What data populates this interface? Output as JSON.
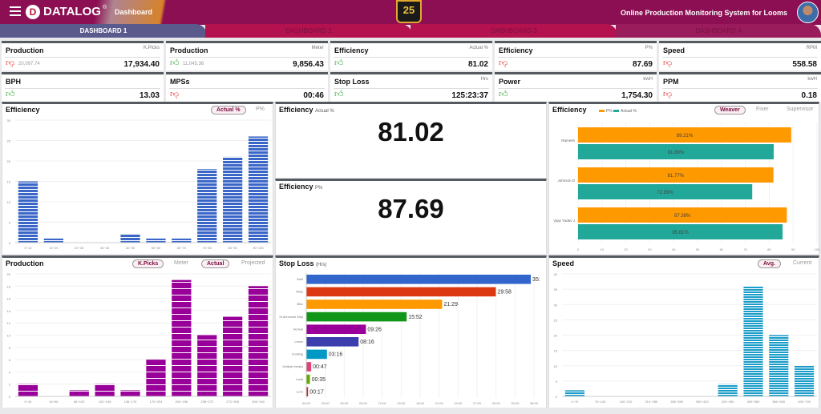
{
  "header": {
    "brand": "DATALOG",
    "brand_mark": "D",
    "registered": "®",
    "page": "Dashboard",
    "badge": "25",
    "system_title": "Online Production Monitoring System for Looms"
  },
  "tabs": [
    {
      "label": "DASHBOARD 1",
      "active": true
    },
    {
      "label": "DASHBOARD 2"
    },
    {
      "label": "DASHBOARD 3"
    },
    {
      "label": "DASHBOARD 4"
    }
  ],
  "kpis": [
    {
      "title": "Production",
      "unit": "K.Picks",
      "prev": "20,097.74",
      "value": "17,934.40",
      "trend": "down"
    },
    {
      "title": "Production",
      "unit": "Meter",
      "prev": "11,045.36",
      "value": "9,856.43",
      "trend": "up"
    },
    {
      "title": "Efficiency",
      "unit": "Actual %",
      "prev": "",
      "value": "81.02",
      "trend": "up"
    },
    {
      "title": "Efficiency",
      "unit": "P%",
      "prev": "",
      "value": "87.69",
      "trend": "down"
    },
    {
      "title": "Speed",
      "unit": "RPM",
      "prev": "",
      "value": "558.58",
      "trend": "down"
    },
    {
      "title": "BPH",
      "unit": "",
      "prev": "",
      "value": "13.03",
      "trend": "up"
    },
    {
      "title": "MPSs",
      "unit": "",
      "prev": "",
      "value": "00:46",
      "trend": "down"
    },
    {
      "title": "Stop Loss",
      "unit": "Hrs",
      "prev": "",
      "value": "125:23:37",
      "trend": "up"
    },
    {
      "title": "Power",
      "unit": "kwH",
      "prev": "",
      "value": "1,754.30",
      "trend": "up"
    },
    {
      "title": "PPM",
      "unit": "kwH",
      "prev": "",
      "value": "0.18",
      "trend": "down"
    }
  ],
  "colors": {
    "header": "#8b0f52",
    "eff_bar": "#3a66c8",
    "prod_bar": "#990099",
    "speed_bar": "#1a9cc8",
    "p_pct": "#ff9900",
    "actual_pct": "#22a898",
    "trend_up": "#3aa83a",
    "trend_down": "#e03030"
  },
  "icons": {
    "up": "thumbs-up-icon",
    "down": "thumbs-down-icon",
    "menu": "hamburger-menu-icon"
  },
  "eff_hist": {
    "title": "Efficiency",
    "toggle_active": "Actual %",
    "toggle_other": "P%"
  },
  "eff_actual": {
    "title": "Efficiency",
    "unit": "Actual %",
    "value": "81.02"
  },
  "eff_p": {
    "title": "Efficiency",
    "unit": "P%",
    "value": "87.69"
  },
  "eff_weaver": {
    "title": "Efficiency",
    "toggle_active": "Weaver",
    "opt1": "Fixer",
    "opt2": "Supervisor",
    "legend": [
      "P%",
      "Actual %"
    ]
  },
  "prod_hist": {
    "title": "Production",
    "unit_active": "K.Picks",
    "unit_other": "Meter",
    "mode_active": "Actual",
    "mode_other": "Projected"
  },
  "stoploss": {
    "title": "Stop Loss",
    "unit": "(Hrs)"
  },
  "speed_hist": {
    "title": "Speed",
    "toggle_active": "Avg.",
    "toggle_other": "Current"
  },
  "chart_data": [
    {
      "type": "bar",
      "title": "Efficiency",
      "categories": [
        "0~10",
        "10~20",
        "20~30",
        "30~40",
        "40~50",
        "50~60",
        "60~70",
        "70~80",
        "80~90",
        "90~100"
      ],
      "values": [
        15,
        1,
        0,
        0,
        2,
        1,
        1,
        18,
        21,
        26
      ],
      "ylim": [
        0,
        30
      ],
      "yticks": [
        0,
        5,
        10,
        15,
        20,
        25,
        30
      ],
      "grid": true
    },
    {
      "type": "bar",
      "orientation": "horizontal",
      "title": "Efficiency",
      "categories": [
        "Ramesh",
        "Johnson D",
        "Vijay Yadav J"
      ],
      "series": [
        {
          "name": "P%",
          "values": [
            89.21,
            81.77,
            87.38
          ],
          "labels": [
            "89.21%",
            "81.77%",
            "87.38%"
          ]
        },
        {
          "name": "Actual %",
          "values": [
            81.89,
            72.89,
            85.61
          ],
          "labels": [
            "81.89%",
            "72.89%",
            "85.61%"
          ]
        }
      ],
      "xlim": [
        0,
        100
      ],
      "xticks": [
        0,
        10,
        20,
        30,
        40,
        50,
        60,
        70,
        80,
        90,
        100
      ],
      "legend": "top-left"
    },
    {
      "type": "bar",
      "title": "Production",
      "categories": [
        "0~34",
        "34~68",
        "68~102",
        "102~136",
        "136~170",
        "170~204",
        "204~238",
        "238~272",
        "272~306",
        "306~340"
      ],
      "values": [
        2,
        0,
        1,
        2,
        1,
        6,
        19,
        10,
        13,
        18
      ],
      "ylim": [
        0,
        20
      ],
      "yticks": [
        0,
        2,
        4,
        6,
        8,
        10,
        12,
        14,
        16,
        18,
        20
      ],
      "grid": true
    },
    {
      "type": "bar",
      "orientation": "horizontal",
      "title": "Stop Loss",
      "categories": [
        "Weft",
        "Warp",
        "Misc",
        "St.Abnormal Stop",
        "Normal",
        "Leano",
        "Knotting",
        "Multiple breaks",
        "Lwalt",
        "Leno"
      ],
      "values": [
        35.5,
        29.97,
        21.48,
        15.87,
        9.43,
        8.27,
        3.27,
        0.78,
        0.58,
        0.28
      ],
      "labels": [
        "35:",
        "29:58",
        "21:29",
        "15:52",
        "09:26",
        "08:16",
        "03:16",
        "00:47",
        "00:35",
        "00:17"
      ],
      "colors": [
        "#3366cc",
        "#dc3912",
        "#ff9900",
        "#109618",
        "#990099",
        "#3b3eac",
        "#0099c6",
        "#dd4477",
        "#66aa00",
        "#b82e2e"
      ],
      "xlim": [
        0,
        36
      ],
      "xticks": [
        "00:00",
        "03:00",
        "06:00",
        "09:00",
        "12:00",
        "15:00",
        "18:00",
        "21:00",
        "24:00",
        "27:00",
        "30:00",
        "33:00",
        "36:00"
      ]
    },
    {
      "type": "bar",
      "title": "Speed",
      "categories": [
        "0~70",
        "70~140",
        "140~210",
        "210~280",
        "280~350",
        "350~420",
        "420~490",
        "490~560",
        "560~630",
        "630~700"
      ],
      "values": [
        2,
        0,
        0,
        0,
        0,
        0,
        4,
        36,
        20,
        10
      ],
      "ylim": [
        0,
        40
      ],
      "yticks": [
        0,
        5,
        10,
        15,
        20,
        25,
        30,
        35,
        40
      ],
      "grid": true
    }
  ]
}
